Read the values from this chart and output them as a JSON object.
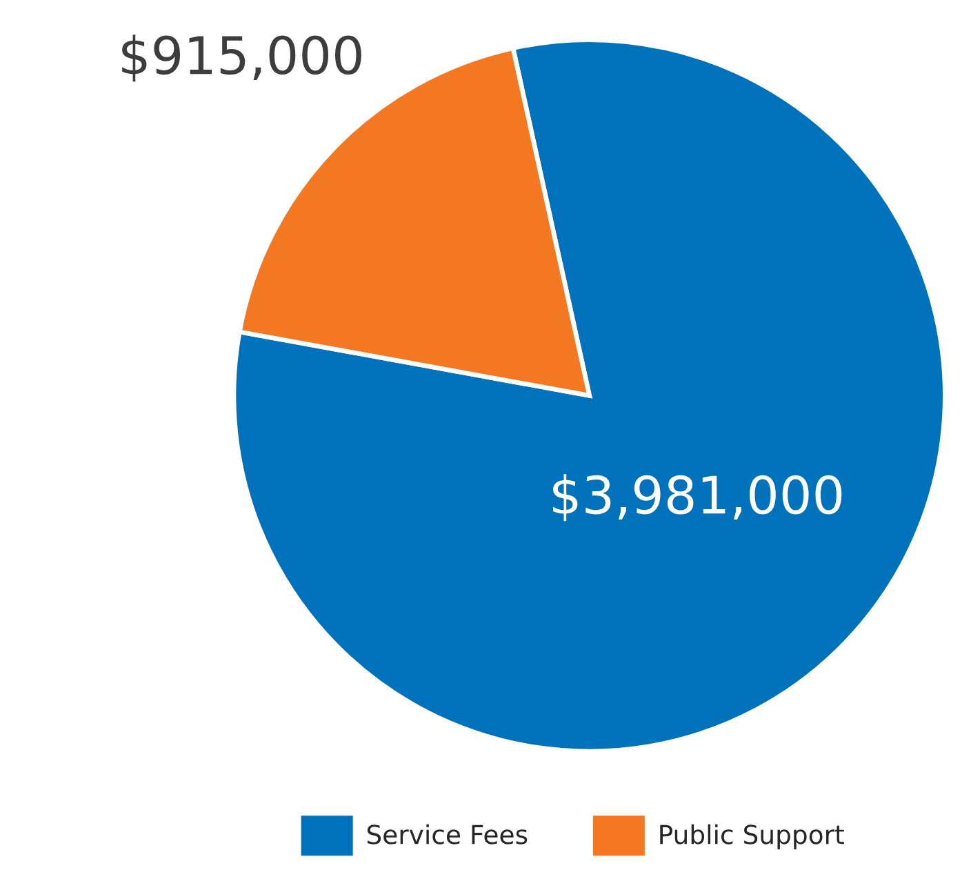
{
  "chart_data": {
    "type": "pie",
    "categories": [
      "Service Fees",
      "Public Support"
    ],
    "values": [
      3981000,
      915000
    ],
    "colors": [
      "#0072bb",
      "#f47722"
    ],
    "value_labels": [
      "$3,981,000",
      "$915,000"
    ],
    "legend": "bottom"
  }
}
